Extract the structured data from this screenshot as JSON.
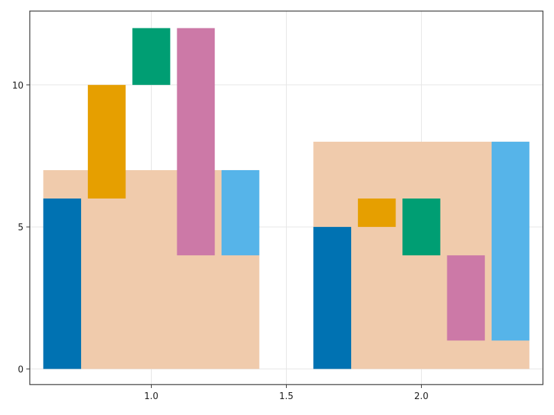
{
  "chart_data": {
    "type": "bar",
    "title": "",
    "xlabel": "",
    "ylabel": "",
    "xlim": [
      0.55,
      2.45
    ],
    "ylim": [
      -0.55,
      12.6
    ],
    "grid": true,
    "x_ticks": [
      1.0,
      1.5,
      2.0
    ],
    "x_tick_labels": [
      "1.0",
      "1.5",
      "2.0"
    ],
    "y_ticks": [
      0,
      5,
      10
    ],
    "y_tick_labels": [
      "0",
      "5",
      "10"
    ],
    "background_bars": [
      {
        "x_start": 0.6,
        "x_end": 1.4,
        "bottom": 0,
        "top": 7
      },
      {
        "x_start": 1.6,
        "x_end": 2.4,
        "bottom": 0,
        "top": 8
      }
    ],
    "floating_bars": [
      {
        "x_start": 0.6,
        "x_end": 0.74,
        "bottom": 0,
        "top": 6,
        "color_key": "blue"
      },
      {
        "x_start": 0.765,
        "x_end": 0.905,
        "bottom": 6,
        "top": 10,
        "color_key": "orange"
      },
      {
        "x_start": 0.93,
        "x_end": 1.07,
        "bottom": 10,
        "top": 12,
        "color_key": "green"
      },
      {
        "x_start": 1.095,
        "x_end": 1.235,
        "bottom": 4,
        "top": 12,
        "color_key": "pink"
      },
      {
        "x_start": 1.26,
        "x_end": 1.4,
        "bottom": 4,
        "top": 7,
        "color_key": "lightblue"
      },
      {
        "x_start": 1.6,
        "x_end": 1.74,
        "bottom": 0,
        "top": 5,
        "color_key": "blue"
      },
      {
        "x_start": 1.765,
        "x_end": 1.905,
        "bottom": 5,
        "top": 6,
        "color_key": "orange"
      },
      {
        "x_start": 1.93,
        "x_end": 2.07,
        "bottom": 4,
        "top": 6,
        "color_key": "green"
      },
      {
        "x_start": 2.095,
        "x_end": 2.235,
        "bottom": 1,
        "top": 4,
        "color_key": "pink"
      },
      {
        "x_start": 2.26,
        "x_end": 2.4,
        "bottom": 1,
        "top": 8,
        "color_key": "lightblue"
      }
    ],
    "colors": {
      "background": "#F0C9A9",
      "blue": "#0072B2",
      "orange": "#E69F00",
      "green": "#009E73",
      "pink": "#CC79A7",
      "lightblue": "#56B4E9",
      "grid": "#E5E5E5",
      "frame": "#333333"
    }
  }
}
